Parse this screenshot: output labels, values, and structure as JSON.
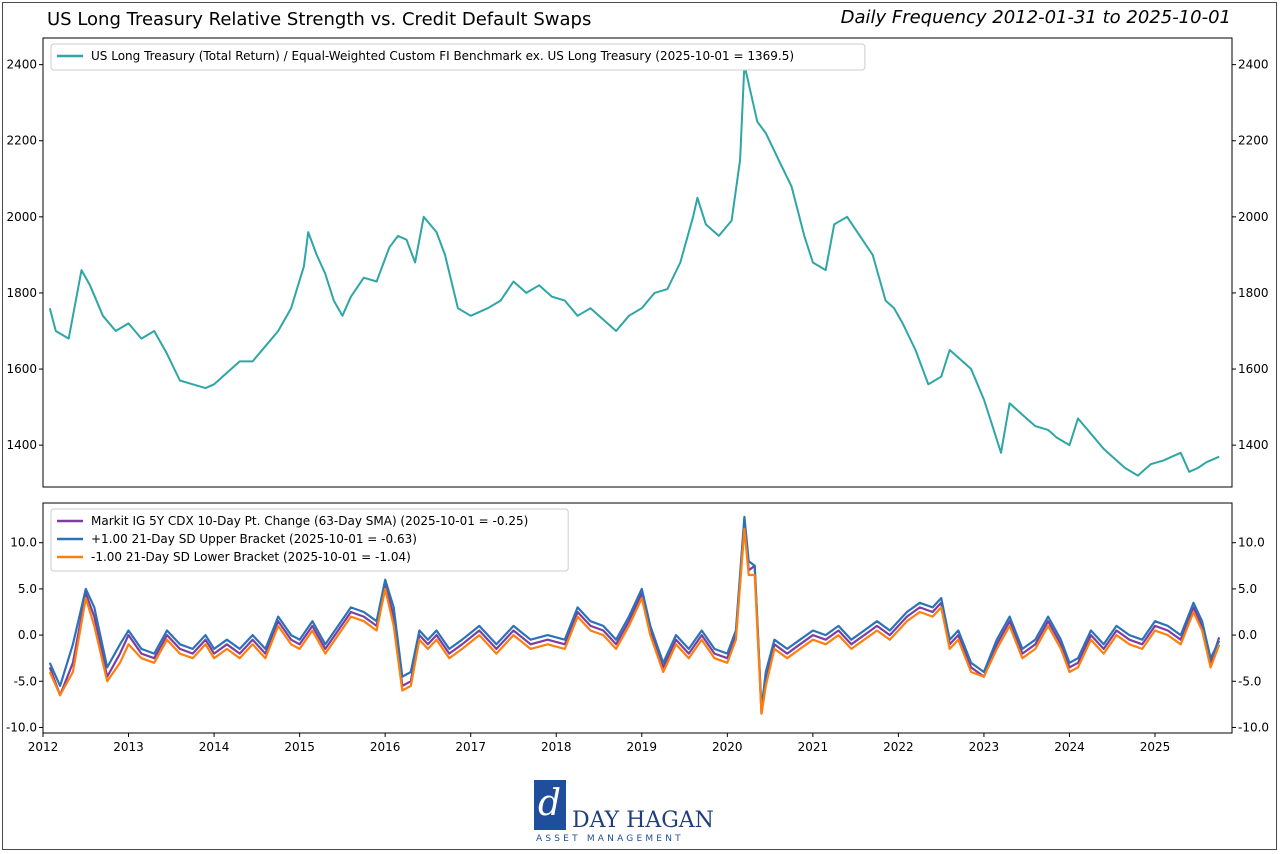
{
  "title": "US Long Treasury Relative Strength vs. Credit Default Swaps",
  "subtitle": "Daily Frequency 2012-01-31 to 2025-10-01",
  "colors": {
    "teal": "#2ea6a6",
    "purple": "#7b3fa3",
    "blue": "#2c72b8",
    "orange": "#ff7f0e"
  },
  "logo": {
    "mark": "d",
    "name": "DAY HAGAN",
    "sub": "ASSET MANAGEMENT"
  },
  "chart_data": [
    {
      "type": "line",
      "legend_position": "top-left",
      "ylim": [
        1290,
        2470
      ],
      "yticks": [
        1400,
        1600,
        1800,
        2000,
        2200,
        2400
      ],
      "ytick_labels": [
        "1400",
        "1600",
        "1800",
        "2000",
        "2200",
        "2400"
      ],
      "grid": false,
      "x": [
        2012.08,
        2012.15,
        2012.3,
        2012.45,
        2012.55,
        2012.7,
        2012.85,
        2013.0,
        2013.15,
        2013.3,
        2013.45,
        2013.6,
        2013.75,
        2013.9,
        2014.0,
        2014.15,
        2014.3,
        2014.45,
        2014.6,
        2014.75,
        2014.9,
        2015.05,
        2015.1,
        2015.2,
        2015.3,
        2015.4,
        2015.5,
        2015.6,
        2015.75,
        2015.9,
        2016.05,
        2016.15,
        2016.25,
        2016.35,
        2016.45,
        2016.6,
        2016.7,
        2016.85,
        2017.0,
        2017.2,
        2017.35,
        2017.5,
        2017.65,
        2017.8,
        2017.95,
        2018.1,
        2018.25,
        2018.4,
        2018.55,
        2018.7,
        2018.85,
        2019.0,
        2019.15,
        2019.3,
        2019.45,
        2019.6,
        2019.65,
        2019.75,
        2019.9,
        2020.05,
        2020.15,
        2020.2,
        2020.25,
        2020.35,
        2020.45,
        2020.6,
        2020.75,
        2020.9,
        2021.0,
        2021.15,
        2021.25,
        2021.4,
        2021.55,
        2021.7,
        2021.85,
        2021.95,
        2022.05,
        2022.2,
        2022.35,
        2022.5,
        2022.6,
        2022.75,
        2022.85,
        2023.0,
        2023.1,
        2023.2,
        2023.3,
        2023.45,
        2023.6,
        2023.75,
        2023.85,
        2024.0,
        2024.1,
        2024.25,
        2024.4,
        2024.55,
        2024.65,
        2024.8,
        2024.95,
        2025.1,
        2025.2,
        2025.3,
        2025.4,
        2025.5,
        2025.6,
        2025.75
      ],
      "series": [
        {
          "name": "US Long Treasury (Total Return) / Equal-Weighted Custom FI Benchmark ex. US Long Treasury (2025-10-01 = 1369.5)",
          "color": "#2ea6a6",
          "values": [
            1760,
            1700,
            1680,
            1860,
            1820,
            1740,
            1700,
            1720,
            1680,
            1700,
            1640,
            1570,
            1560,
            1550,
            1560,
            1590,
            1620,
            1620,
            1660,
            1700,
            1760,
            1870,
            1960,
            1900,
            1850,
            1780,
            1740,
            1790,
            1840,
            1830,
            1920,
            1950,
            1940,
            1880,
            2000,
            1960,
            1900,
            1760,
            1740,
            1760,
            1780,
            1830,
            1800,
            1820,
            1790,
            1780,
            1740,
            1760,
            1730,
            1700,
            1740,
            1760,
            1800,
            1810,
            1880,
            2000,
            2050,
            1980,
            1950,
            1990,
            2150,
            2400,
            2350,
            2250,
            2220,
            2150,
            2080,
            1950,
            1880,
            1860,
            1980,
            2000,
            1950,
            1900,
            1780,
            1760,
            1720,
            1650,
            1560,
            1580,
            1650,
            1620,
            1600,
            1520,
            1450,
            1380,
            1510,
            1480,
            1450,
            1440,
            1420,
            1400,
            1470,
            1430,
            1390,
            1360,
            1340,
            1320,
            1350,
            1360,
            1370,
            1380,
            1330,
            1340,
            1355,
            1369.5
          ]
        }
      ]
    },
    {
      "type": "line",
      "legend_position": "top-left",
      "ylim": [
        -10.6,
        14.3
      ],
      "yticks": [
        -10,
        -5,
        0,
        5,
        10
      ],
      "ytick_labels": [
        "-10.0",
        "-5.0",
        "0.0",
        "5.0",
        "10.0"
      ],
      "xlim": [
        2012.0,
        2025.9
      ],
      "xticks": [
        2012,
        2013,
        2014,
        2015,
        2016,
        2017,
        2018,
        2019,
        2020,
        2021,
        2022,
        2023,
        2024,
        2025
      ],
      "xtick_labels": [
        "2012",
        "2013",
        "2014",
        "2015",
        "2016",
        "2017",
        "2018",
        "2019",
        "2020",
        "2021",
        "2022",
        "2023",
        "2024",
        "2025"
      ],
      "grid": false,
      "x": [
        2012.08,
        2012.2,
        2012.35,
        2012.5,
        2012.6,
        2012.75,
        2012.9,
        2013.0,
        2013.15,
        2013.3,
        2013.45,
        2013.6,
        2013.75,
        2013.9,
        2014.0,
        2014.15,
        2014.3,
        2014.45,
        2014.6,
        2014.75,
        2014.9,
        2015.0,
        2015.15,
        2015.3,
        2015.45,
        2015.6,
        2015.75,
        2015.9,
        2016.0,
        2016.1,
        2016.2,
        2016.3,
        2016.4,
        2016.5,
        2016.6,
        2016.75,
        2016.9,
        2017.1,
        2017.3,
        2017.5,
        2017.7,
        2017.9,
        2018.1,
        2018.25,
        2018.4,
        2018.55,
        2018.7,
        2018.85,
        2019.0,
        2019.1,
        2019.25,
        2019.4,
        2019.55,
        2019.7,
        2019.85,
        2020.0,
        2020.1,
        2020.2,
        2020.25,
        2020.32,
        2020.4,
        2020.45,
        2020.55,
        2020.7,
        2020.85,
        2021.0,
        2021.15,
        2021.3,
        2021.45,
        2021.6,
        2021.75,
        2021.9,
        2022.1,
        2022.25,
        2022.4,
        2022.5,
        2022.6,
        2022.7,
        2022.85,
        2023.0,
        2023.15,
        2023.3,
        2023.45,
        2023.6,
        2023.75,
        2023.9,
        2024.0,
        2024.1,
        2024.25,
        2024.4,
        2024.55,
        2024.7,
        2024.85,
        2025.0,
        2025.15,
        2025.3,
        2025.45,
        2025.55,
        2025.65,
        2025.75
      ],
      "series": [
        {
          "name": "Markit IG 5Y CDX 10-Day Pt. Change (63-Day SMA) (2025-10-01 = -0.25)",
          "color": "#7b3fa3",
          "values": [
            -3.5,
            -6.5,
            -3.0,
            4.5,
            2.0,
            -4.5,
            -2.0,
            0.0,
            -2.0,
            -2.5,
            0.0,
            -1.5,
            -2.0,
            -0.5,
            -2.0,
            -1.0,
            -2.0,
            -0.5,
            -2.0,
            1.5,
            -0.5,
            -1.0,
            1.0,
            -1.5,
            0.5,
            2.5,
            2.0,
            1.0,
            5.5,
            2.0,
            -5.5,
            -5.0,
            0.0,
            -1.0,
            0.0,
            -2.0,
            -1.0,
            0.5,
            -1.5,
            0.5,
            -1.0,
            -0.5,
            -1.0,
            2.5,
            1.0,
            0.5,
            -1.0,
            1.5,
            4.5,
            0.5,
            -3.5,
            -0.5,
            -2.0,
            0.0,
            -2.0,
            -2.5,
            0.0,
            12.5,
            7.0,
            7.5,
            -8.5,
            -5.0,
            -1.0,
            -2.0,
            -1.0,
            0.0,
            -0.5,
            0.5,
            -1.0,
            0.0,
            1.0,
            0.0,
            2.0,
            3.0,
            2.5,
            3.5,
            -1.0,
            0.0,
            -3.5,
            -4.5,
            -1.0,
            1.5,
            -2.0,
            -1.0,
            1.5,
            -1.0,
            -3.5,
            -3.0,
            0.0,
            -1.5,
            0.5,
            -0.5,
            -1.0,
            1.0,
            0.5,
            -0.5,
            3.0,
            1.0,
            -3.0,
            -0.25
          ]
        },
        {
          "name": "+1.00 21-Day SD Upper Bracket (2025-10-01 = -0.63)",
          "color": "#2c72b8",
          "values": [
            -3.0,
            -5.5,
            -1.0,
            5.0,
            3.0,
            -3.5,
            -1.0,
            0.5,
            -1.5,
            -2.0,
            0.5,
            -1.0,
            -1.5,
            0.0,
            -1.5,
            -0.5,
            -1.5,
            0.0,
            -1.5,
            2.0,
            0.0,
            -0.5,
            1.5,
            -1.0,
            1.0,
            3.0,
            2.5,
            1.5,
            6.0,
            3.0,
            -4.5,
            -4.0,
            0.5,
            -0.5,
            0.5,
            -1.5,
            -0.5,
            1.0,
            -1.0,
            1.0,
            -0.5,
            0.0,
            -0.5,
            3.0,
            1.5,
            1.0,
            -0.5,
            2.0,
            5.0,
            1.0,
            -3.0,
            0.0,
            -1.5,
            0.5,
            -1.5,
            -2.0,
            0.5,
            12.8,
            8.0,
            7.5,
            -8.0,
            -4.0,
            -0.5,
            -1.5,
            -0.5,
            0.5,
            0.0,
            1.0,
            -0.5,
            0.5,
            1.5,
            0.5,
            2.5,
            3.5,
            3.0,
            4.0,
            -0.5,
            0.5,
            -3.0,
            -4.0,
            -0.5,
            2.0,
            -1.5,
            -0.5,
            2.0,
            -0.5,
            -3.0,
            -2.5,
            0.5,
            -1.0,
            1.0,
            0.0,
            -0.5,
            1.5,
            1.0,
            0.0,
            3.5,
            1.5,
            -2.5,
            -0.63
          ]
        },
        {
          "name": "-1.00 21-Day SD Lower Bracket (2025-10-01 = -1.04)",
          "color": "#ff7f0e",
          "values": [
            -4.0,
            -6.5,
            -4.0,
            4.0,
            1.0,
            -5.0,
            -3.0,
            -1.0,
            -2.5,
            -3.0,
            -0.5,
            -2.0,
            -2.5,
            -1.0,
            -2.5,
            -1.5,
            -2.5,
            -1.0,
            -2.5,
            1.0,
            -1.0,
            -1.5,
            0.5,
            -2.0,
            0.0,
            2.0,
            1.5,
            0.5,
            5.0,
            1.0,
            -6.0,
            -5.5,
            -0.5,
            -1.5,
            -0.5,
            -2.5,
            -1.5,
            0.0,
            -2.0,
            0.0,
            -1.5,
            -1.0,
            -1.5,
            2.0,
            0.5,
            0.0,
            -1.5,
            1.0,
            4.0,
            0.0,
            -4.0,
            -1.0,
            -2.5,
            -0.5,
            -2.5,
            -3.0,
            -0.5,
            11.5,
            6.5,
            6.5,
            -8.5,
            -5.5,
            -1.5,
            -2.5,
            -1.5,
            -0.5,
            -1.0,
            0.0,
            -1.5,
            -0.5,
            0.5,
            -0.5,
            1.5,
            2.5,
            2.0,
            3.0,
            -1.5,
            -0.5,
            -4.0,
            -4.5,
            -1.5,
            1.0,
            -2.5,
            -1.5,
            1.0,
            -1.5,
            -4.0,
            -3.5,
            -0.5,
            -2.0,
            0.0,
            -1.0,
            -1.5,
            0.5,
            0.0,
            -1.0,
            2.5,
            0.5,
            -3.5,
            -1.04
          ]
        }
      ]
    }
  ]
}
